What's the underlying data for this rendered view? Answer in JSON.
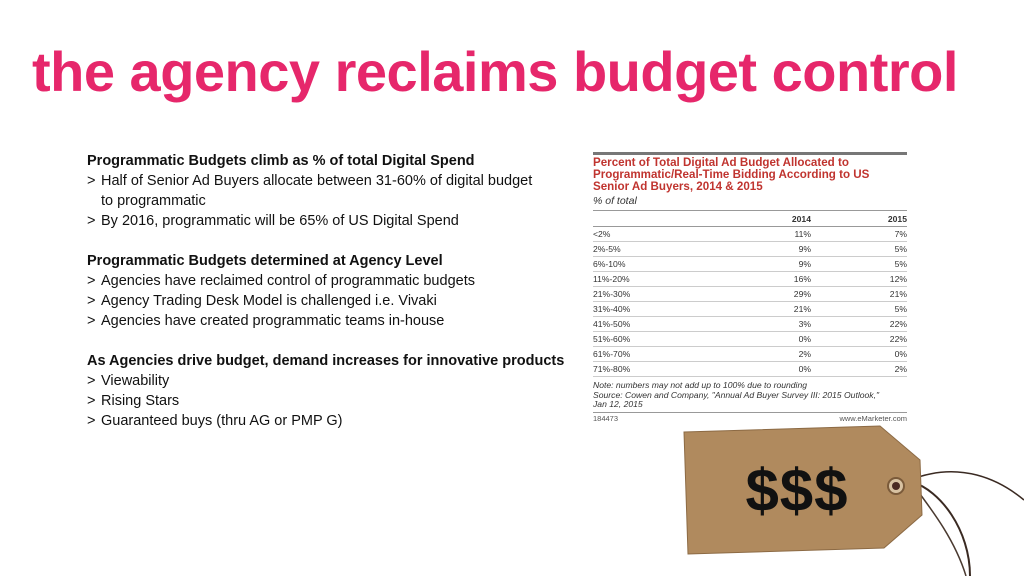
{
  "slide": {
    "title": "the agency reclaims budget control",
    "accent_color": "#e6276b"
  },
  "left": {
    "sections": [
      {
        "heading": "Programmatic Budgets climb as % of total Digital Spend",
        "bullets": [
          [
            "Half of Senior Ad Buyers allocate between 31-60% of digital budget",
            "to programmatic"
          ],
          [
            "By 2016, programmatic will be 65% of US Digital Spend"
          ]
        ]
      },
      {
        "heading": "Programmatic Budgets determined at Agency Level",
        "bullets": [
          [
            "Agencies have reclaimed control of programmatic budgets"
          ],
          [
            "Agency Trading Desk Model is challenged i.e. Vivaki"
          ],
          [
            "Agencies have created programmatic teams in-house"
          ]
        ]
      },
      {
        "heading": "As Agencies drive budget, demand increases for innovative products",
        "bullets": [
          [
            "Viewability"
          ],
          [
            "Rising Stars"
          ],
          [
            "Guaranteed buys (thru AG or PMP G)"
          ]
        ]
      }
    ],
    "bullet_marker": ">"
  },
  "table": {
    "title_lines": [
      "Percent of Total Digital Ad Budget Allocated to",
      "Programmatic/Real-Time Bidding According to US",
      "Senior Ad Buyers, 2014 & 2015"
    ],
    "subtitle": "% of total",
    "title_color": "#c0342f",
    "columns": [
      "",
      "2014",
      "2015"
    ],
    "rows": [
      [
        "<2%",
        "11%",
        "7%"
      ],
      [
        "2%-5%",
        "9%",
        "5%"
      ],
      [
        "6%-10%",
        "9%",
        "5%"
      ],
      [
        "11%-20%",
        "16%",
        "12%"
      ],
      [
        "21%-30%",
        "29%",
        "21%"
      ],
      [
        "31%-40%",
        "21%",
        "5%"
      ],
      [
        "41%-50%",
        "3%",
        "22%"
      ],
      [
        "51%-60%",
        "0%",
        "22%"
      ],
      [
        "61%-70%",
        "2%",
        "0%"
      ],
      [
        "71%-80%",
        "0%",
        "2%"
      ]
    ],
    "note_lines": [
      "Note: numbers may not add up to 100% due to rounding",
      "Source: Cowen and Company, \"Annual Ad Buyer Survey III: 2015 Outlook,\"",
      "Jan 12, 2015"
    ],
    "footer_id": "184473",
    "footer_site": "www.eMarketer.com"
  },
  "price_tag": {
    "text": "$$$"
  }
}
